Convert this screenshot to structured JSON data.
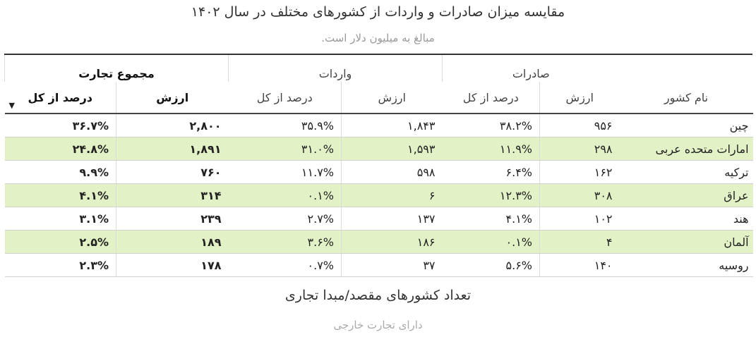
{
  "title": "مقایسه میزان صادرات و واردات از کشورهای مختلف در سال ۱۴۰۲",
  "subtitle": "مبالغ به میلیون دلار است.",
  "table": {
    "groups": {
      "total": "مجموع تجارت",
      "imports": "واردات",
      "exports": "صادرات"
    },
    "headers": {
      "percent": "درصد از کل",
      "value": "ارزش",
      "country": "نام کشور"
    },
    "rows": [
      {
        "country": "چین",
        "exp_value": "۹۵۶",
        "exp_pct": "۳۸.۲%",
        "imp_value": "۱,۸۴۳",
        "imp_pct": "۳۵.۹%",
        "tot_value": "۲,۸۰۰",
        "tot_pct": "۳۶.۷%",
        "highlight": false
      },
      {
        "country": "امارات متحده عربی",
        "exp_value": "۲۹۸",
        "exp_pct": "۱۱.۹%",
        "imp_value": "۱,۵۹۳",
        "imp_pct": "۳۱.۰%",
        "tot_value": "۱,۸۹۱",
        "tot_pct": "۲۴.۸%",
        "highlight": true
      },
      {
        "country": "ترکیه",
        "exp_value": "۱۶۲",
        "exp_pct": "۶.۴%",
        "imp_value": "۵۹۸",
        "imp_pct": "۱۱.۷%",
        "tot_value": "۷۶۰",
        "tot_pct": "۹.۹%",
        "highlight": false
      },
      {
        "country": "عراق",
        "exp_value": "۳۰۸",
        "exp_pct": "۱۲.۳%",
        "imp_value": "۶",
        "imp_pct": "۰.۱%",
        "tot_value": "۳۱۴",
        "tot_pct": "۴.۱%",
        "highlight": true
      },
      {
        "country": "هند",
        "exp_value": "۱۰۲",
        "exp_pct": "۴.۱%",
        "imp_value": "۱۳۷",
        "imp_pct": "۲.۷%",
        "tot_value": "۲۳۹",
        "tot_pct": "۳.۱%",
        "highlight": false
      },
      {
        "country": "آلمان",
        "exp_value": "۴",
        "exp_pct": "۰.۱%",
        "imp_value": "۱۸۶",
        "imp_pct": "۳.۶%",
        "tot_value": "۱۸۹",
        "tot_pct": "۲.۵%",
        "highlight": true
      },
      {
        "country": "روسیه",
        "exp_value": "۱۴۰",
        "exp_pct": "۵.۶%",
        "imp_value": "۳۷",
        "imp_pct": "۰.۷%",
        "tot_value": "۱۷۸",
        "tot_pct": "۲.۳%",
        "highlight": false
      }
    ]
  },
  "footer": {
    "title": "تعداد کشورهای مقصد/مبدا تجاری",
    "subtitle": "دارای تجارت خارجی"
  },
  "icons": {
    "sort": "sort-desc-icon"
  },
  "colors": {
    "highlight_row": "#e3f1c6"
  }
}
